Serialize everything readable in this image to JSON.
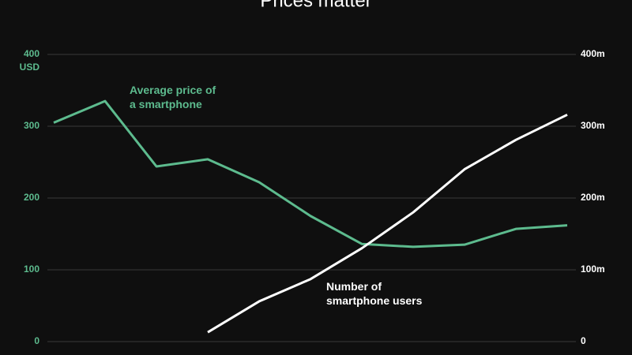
{
  "chart_data": {
    "type": "line",
    "title": "Prices matter",
    "categories": [
      null,
      null,
      null,
      null,
      null,
      null,
      null,
      null,
      null,
      null,
      null
    ],
    "series": [
      {
        "name": "Average price of a smartphone",
        "color": "#5dbb8e",
        "axis": "y",
        "values": [
          305,
          335,
          244,
          254,
          222,
          175,
          136,
          132,
          135,
          157,
          162
        ]
      },
      {
        "name": "Number of smartphone users",
        "color": "#ffffff",
        "axis": "y2",
        "values": [
          null,
          null,
          null,
          13,
          56,
          87,
          130,
          180,
          240,
          281,
          316
        ]
      }
    ],
    "annotations": [
      {
        "lines": [
          "Average price of",
          "a smartphone"
        ]
      },
      {
        "lines": [
          "Number of",
          "smartphone users"
        ]
      }
    ],
    "y_unit": "USD",
    "ylim": [
      0,
      400
    ],
    "yticks": [
      0,
      100,
      200,
      300,
      400
    ],
    "y2lim": [
      0,
      400
    ],
    "y2ticks": [
      0,
      {
        "value": 100,
        "label": "100m"
      },
      {
        "value": 200,
        "label": "200m"
      },
      {
        "value": 300,
        "label": "300m"
      },
      {
        "value": 400,
        "label": "400m"
      }
    ],
    "grid": true
  }
}
